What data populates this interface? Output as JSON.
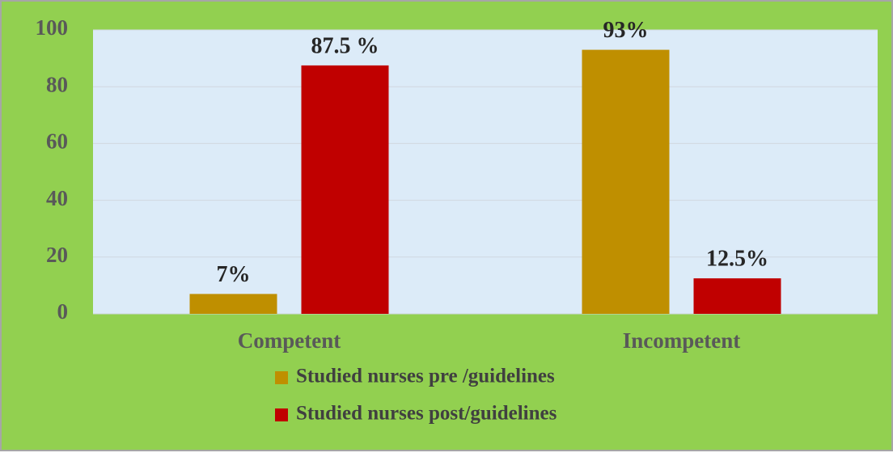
{
  "chart_data": {
    "type": "bar",
    "categories": [
      "Competent",
      "Incompetent"
    ],
    "series": [
      {
        "name": "Studied nurses pre /guidelines",
        "color": "#bf8f00",
        "values": [
          7,
          93
        ],
        "value_labels": [
          "7%",
          "93%"
        ]
      },
      {
        "name": "Studied nurses post/guidelines",
        "color": "#c00000",
        "values": [
          87.5,
          12.5
        ],
        "value_labels": [
          "87.5 %",
          "12.5%"
        ]
      }
    ],
    "ylim": [
      0,
      100
    ],
    "yticks": [
      0,
      20,
      40,
      60,
      80,
      100
    ],
    "grid": true
  }
}
